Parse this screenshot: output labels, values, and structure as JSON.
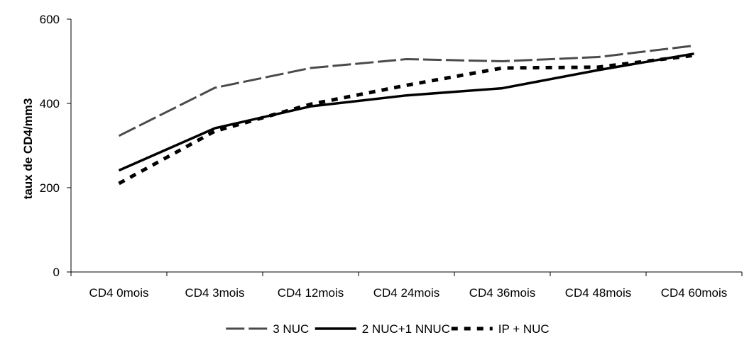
{
  "chart_data": {
    "type": "line",
    "categories": [
      "CD4 0mois",
      "CD4 3mois",
      "CD4 12mois",
      "CD4 24mois",
      "CD4 36mois",
      "CD4 48mois",
      "CD4 60mois"
    ],
    "ylabel": "taux de CD4/mm3",
    "xlabel": "",
    "ylim": [
      0,
      600
    ],
    "yticks": [
      0,
      200,
      400,
      600
    ],
    "grid": false,
    "legend_position": "bottom",
    "series": [
      {
        "name": "3 NUC",
        "values": [
          323,
          437,
          484,
          505,
          500,
          510,
          537
        ],
        "color": "#4a4a4a",
        "dash": "long-dash"
      },
      {
        "name": "2 NUC+1 NNUC",
        "values": [
          241,
          341,
          393,
          419,
          436,
          479,
          518
        ],
        "color": "#000000",
        "dash": "solid"
      },
      {
        "name": "IP + NUC",
        "values": [
          210,
          334,
          398,
          443,
          484,
          486,
          514
        ],
        "color": "#000000",
        "dash": "short-dash"
      }
    ]
  }
}
